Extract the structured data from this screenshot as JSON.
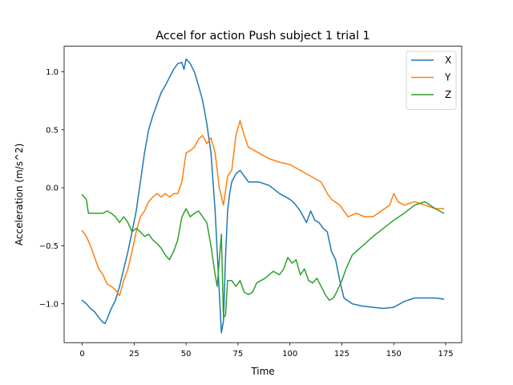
{
  "chart_data": {
    "type": "line",
    "title": "Accel for action Push subject 1 trial 1",
    "xlabel": "Time",
    "ylabel": "Acceleration (m/s^2)",
    "xlim": [
      -8.7,
      182.7
    ],
    "ylim": [
      -1.335,
      1.22
    ],
    "xticks": [
      0,
      25,
      50,
      75,
      100,
      125,
      150,
      175
    ],
    "xtick_labels": [
      "0",
      "25",
      "50",
      "75",
      "100",
      "125",
      "150",
      "175"
    ],
    "yticks": [
      1.0,
      0.5,
      0.0,
      -0.5,
      -1.0
    ],
    "ytick_labels": [
      "1.0",
      "0.5",
      "0.0",
      "−0.5",
      "−1.0"
    ],
    "grid": false,
    "legend_position": "top-right",
    "series": [
      {
        "name": "X",
        "color": "#1f77b4",
        "points": [
          [
            0,
            -0.97
          ],
          [
            2,
            -1.0
          ],
          [
            4,
            -1.04
          ],
          [
            6,
            -1.07
          ],
          [
            8,
            -1.12
          ],
          [
            10,
            -1.16
          ],
          [
            11,
            -1.17
          ],
          [
            12,
            -1.13
          ],
          [
            14,
            -1.04
          ],
          [
            16,
            -0.97
          ],
          [
            18,
            -0.85
          ],
          [
            20,
            -0.7
          ],
          [
            22,
            -0.55
          ],
          [
            24,
            -0.38
          ],
          [
            26,
            -0.2
          ],
          [
            28,
            0.05
          ],
          [
            30,
            0.3
          ],
          [
            32,
            0.5
          ],
          [
            34,
            0.62
          ],
          [
            36,
            0.72
          ],
          [
            38,
            0.82
          ],
          [
            40,
            0.88
          ],
          [
            42,
            0.95
          ],
          [
            44,
            1.02
          ],
          [
            46,
            1.07
          ],
          [
            48,
            1.08
          ],
          [
            49,
            1.02
          ],
          [
            50,
            1.11
          ],
          [
            52,
            1.07
          ],
          [
            54,
            1.0
          ],
          [
            56,
            0.88
          ],
          [
            58,
            0.75
          ],
          [
            60,
            0.55
          ],
          [
            62,
            0.3
          ],
          [
            64,
            -0.2
          ],
          [
            66,
            -0.9
          ],
          [
            67,
            -1.25
          ],
          [
            68,
            -1.15
          ],
          [
            69,
            -0.6
          ],
          [
            70,
            -0.2
          ],
          [
            71,
            -0.05
          ],
          [
            72,
            0.05
          ],
          [
            74,
            0.12
          ],
          [
            76,
            0.15
          ],
          [
            78,
            0.1
          ],
          [
            80,
            0.05
          ],
          [
            85,
            0.05
          ],
          [
            90,
            0.02
          ],
          [
            95,
            -0.05
          ],
          [
            100,
            -0.1
          ],
          [
            102,
            -0.13
          ],
          [
            105,
            -0.2
          ],
          [
            108,
            -0.3
          ],
          [
            110,
            -0.2
          ],
          [
            112,
            -0.28
          ],
          [
            114,
            -0.3
          ],
          [
            116,
            -0.35
          ],
          [
            118,
            -0.38
          ],
          [
            120,
            -0.55
          ],
          [
            122,
            -0.62
          ],
          [
            124,
            -0.8
          ],
          [
            126,
            -0.95
          ],
          [
            130,
            -1.0
          ],
          [
            135,
            -1.02
          ],
          [
            140,
            -1.03
          ],
          [
            145,
            -1.04
          ],
          [
            150,
            -1.03
          ],
          [
            155,
            -0.98
          ],
          [
            160,
            -0.95
          ],
          [
            165,
            -0.95
          ],
          [
            170,
            -0.95
          ],
          [
            174,
            -0.96
          ]
        ]
      },
      {
        "name": "Y",
        "color": "#ff7f0e",
        "points": [
          [
            0,
            -0.37
          ],
          [
            2,
            -0.42
          ],
          [
            4,
            -0.5
          ],
          [
            6,
            -0.6
          ],
          [
            8,
            -0.7
          ],
          [
            10,
            -0.75
          ],
          [
            12,
            -0.83
          ],
          [
            14,
            -0.85
          ],
          [
            16,
            -0.88
          ],
          [
            18,
            -0.93
          ],
          [
            20,
            -0.8
          ],
          [
            22,
            -0.7
          ],
          [
            24,
            -0.55
          ],
          [
            26,
            -0.38
          ],
          [
            28,
            -0.25
          ],
          [
            30,
            -0.2
          ],
          [
            32,
            -0.12
          ],
          [
            34,
            -0.08
          ],
          [
            36,
            -0.05
          ],
          [
            38,
            -0.08
          ],
          [
            40,
            -0.05
          ],
          [
            42,
            -0.08
          ],
          [
            44,
            -0.05
          ],
          [
            46,
            -0.05
          ],
          [
            48,
            0.05
          ],
          [
            50,
            0.3
          ],
          [
            52,
            0.32
          ],
          [
            54,
            0.35
          ],
          [
            56,
            0.42
          ],
          [
            58,
            0.45
          ],
          [
            60,
            0.38
          ],
          [
            62,
            0.43
          ],
          [
            64,
            0.3
          ],
          [
            66,
            0.0
          ],
          [
            68,
            -0.15
          ],
          [
            70,
            0.1
          ],
          [
            72,
            0.15
          ],
          [
            74,
            0.45
          ],
          [
            76,
            0.58
          ],
          [
            78,
            0.45
          ],
          [
            80,
            0.35
          ],
          [
            85,
            0.3
          ],
          [
            90,
            0.25
          ],
          [
            95,
            0.22
          ],
          [
            100,
            0.2
          ],
          [
            105,
            0.15
          ],
          [
            110,
            0.1
          ],
          [
            115,
            0.05
          ],
          [
            118,
            -0.05
          ],
          [
            120,
            -0.1
          ],
          [
            124,
            -0.15
          ],
          [
            128,
            -0.25
          ],
          [
            132,
            -0.22
          ],
          [
            136,
            -0.25
          ],
          [
            140,
            -0.25
          ],
          [
            144,
            -0.2
          ],
          [
            148,
            -0.15
          ],
          [
            150,
            -0.05
          ],
          [
            152,
            -0.12
          ],
          [
            155,
            -0.15
          ],
          [
            160,
            -0.12
          ],
          [
            165,
            -0.15
          ],
          [
            170,
            -0.18
          ],
          [
            174,
            -0.18
          ]
        ]
      },
      {
        "name": "Z",
        "color": "#2ca02c",
        "points": [
          [
            0,
            -0.06
          ],
          [
            2,
            -0.1
          ],
          [
            3,
            -0.22
          ],
          [
            6,
            -0.22
          ],
          [
            10,
            -0.22
          ],
          [
            12,
            -0.2
          ],
          [
            14,
            -0.22
          ],
          [
            16,
            -0.25
          ],
          [
            18,
            -0.3
          ],
          [
            20,
            -0.25
          ],
          [
            22,
            -0.3
          ],
          [
            24,
            -0.38
          ],
          [
            26,
            -0.35
          ],
          [
            28,
            -0.38
          ],
          [
            30,
            -0.42
          ],
          [
            32,
            -0.4
          ],
          [
            34,
            -0.45
          ],
          [
            36,
            -0.48
          ],
          [
            38,
            -0.52
          ],
          [
            40,
            -0.58
          ],
          [
            42,
            -0.62
          ],
          [
            44,
            -0.55
          ],
          [
            46,
            -0.45
          ],
          [
            48,
            -0.25
          ],
          [
            50,
            -0.18
          ],
          [
            52,
            -0.25
          ],
          [
            54,
            -0.22
          ],
          [
            56,
            -0.2
          ],
          [
            58,
            -0.25
          ],
          [
            60,
            -0.3
          ],
          [
            62,
            -0.5
          ],
          [
            64,
            -0.75
          ],
          [
            65,
            -0.85
          ],
          [
            67,
            -0.4
          ],
          [
            68,
            -1.12
          ],
          [
            69,
            -1.1
          ],
          [
            70,
            -0.8
          ],
          [
            72,
            -0.8
          ],
          [
            74,
            -0.85
          ],
          [
            76,
            -0.8
          ],
          [
            78,
            -0.9
          ],
          [
            80,
            -0.92
          ],
          [
            82,
            -0.9
          ],
          [
            84,
            -0.82
          ],
          [
            86,
            -0.8
          ],
          [
            88,
            -0.78
          ],
          [
            90,
            -0.75
          ],
          [
            92,
            -0.72
          ],
          [
            95,
            -0.75
          ],
          [
            97,
            -0.7
          ],
          [
            99,
            -0.6
          ],
          [
            101,
            -0.65
          ],
          [
            103,
            -0.62
          ],
          [
            105,
            -0.75
          ],
          [
            107,
            -0.7
          ],
          [
            109,
            -0.8
          ],
          [
            111,
            -0.82
          ],
          [
            113,
            -0.78
          ],
          [
            115,
            -0.85
          ],
          [
            117,
            -0.92
          ],
          [
            119,
            -0.97
          ],
          [
            121,
            -0.95
          ],
          [
            123,
            -0.88
          ],
          [
            125,
            -0.8
          ],
          [
            127,
            -0.7
          ],
          [
            130,
            -0.58
          ],
          [
            135,
            -0.5
          ],
          [
            140,
            -0.42
          ],
          [
            145,
            -0.35
          ],
          [
            150,
            -0.28
          ],
          [
            155,
            -0.22
          ],
          [
            160,
            -0.15
          ],
          [
            165,
            -0.12
          ],
          [
            170,
            -0.18
          ],
          [
            174,
            -0.22
          ]
        ]
      }
    ]
  }
}
